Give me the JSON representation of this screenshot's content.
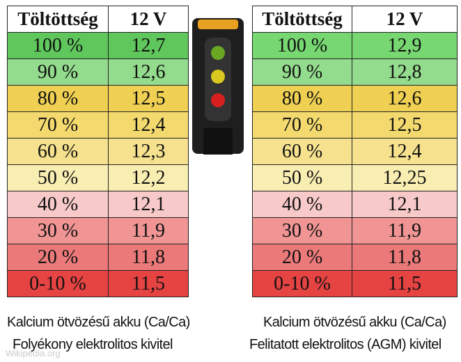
{
  "tables": [
    {
      "header": [
        "Töltöttség",
        "12 V"
      ],
      "rows": [
        [
          "100 %",
          "12,7"
        ],
        [
          "90 %",
          "12,6"
        ],
        [
          "80 %",
          "12,5"
        ],
        [
          "70 %",
          "12,4"
        ],
        [
          "60 %",
          "12,3"
        ],
        [
          "50 %",
          "12,2"
        ],
        [
          "40 %",
          "12,1"
        ],
        [
          "30 %",
          "11,9"
        ],
        [
          "20 %",
          "11,8"
        ],
        [
          "0-10 %",
          "11,5"
        ]
      ],
      "caption": [
        "Kalcium ötvözésű akku (Ca/Ca)",
        "Folyékony elektrolitos kivitel"
      ]
    },
    {
      "header": [
        "Töltöttség",
        "12 V"
      ],
      "rows": [
        [
          "100 %",
          "12,9"
        ],
        [
          "90 %",
          "12,8"
        ],
        [
          "80 %",
          "12,6"
        ],
        [
          "70 %",
          "12,5"
        ],
        [
          "60 %",
          "12,4"
        ],
        [
          "50 %",
          "12,25"
        ],
        [
          "40 %",
          "12,1"
        ],
        [
          "30 %",
          "11,9"
        ],
        [
          "20 %",
          "11,8"
        ],
        [
          "0-10 %",
          "11,5"
        ]
      ],
      "caption": [
        "Kalcium ötvözésű akku (Ca/Ca)",
        "Felitatott elektrolitos (AGM) kivitel"
      ]
    }
  ],
  "watermark": "Wikipedia.org"
}
